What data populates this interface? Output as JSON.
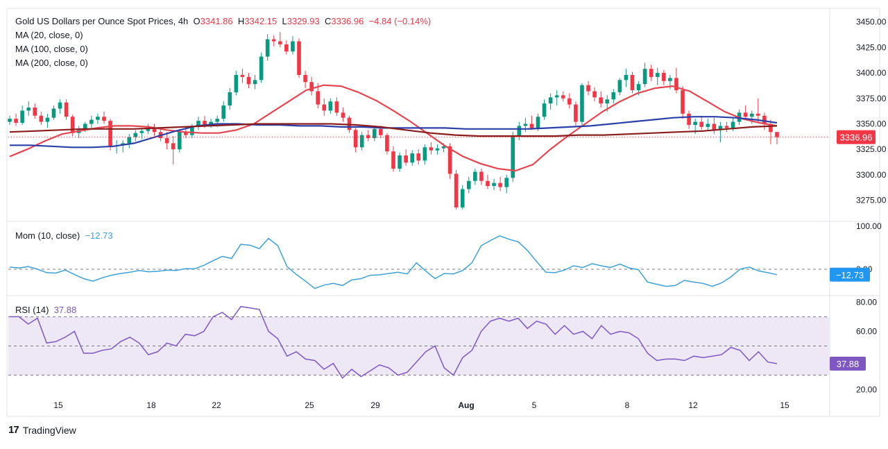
{
  "legend": {
    "title": "Gold US Dollars per Ounce Spot Prices, 4h",
    "o_label": "O",
    "o_value": "3341.86",
    "h_label": "H",
    "h_value": "3342.15",
    "l_label": "L",
    "l_value": "3329.93",
    "c_label": "C",
    "c_value": "3336.96",
    "change": "−4.84 (−0.14%)",
    "ma1": "MA (20, close, 0)",
    "ma2": "MA (100, close, 0)",
    "ma3": "MA (200, close, 0)",
    "mom_label": "Mom (10, close)",
    "mom_value": "−12.73",
    "rsi_label": "RSI (14)",
    "rsi_value": "37.88"
  },
  "brand": {
    "logo": "17",
    "name": "TradingView"
  },
  "colors": {
    "up": "#089981",
    "down": "#f23645",
    "ma20": "#e5444f",
    "ma100": "#2a3fa8",
    "ma200": "#8b1c1c",
    "mom": "#3ba1d8",
    "rsi": "#7e57c2",
    "rsi_band": "#ede7f6"
  },
  "chart_data": [
    {
      "type": "candlestick",
      "title": "Gold US Dollars per Ounce Spot Prices, 4h",
      "ylim": [
        3255,
        3462
      ],
      "y_ticks": [
        "3450.00",
        "3425.00",
        "3400.00",
        "3375.00",
        "3350.00",
        "3325.00",
        "3300.00",
        "3275.00"
      ],
      "x_ticks": [
        "15",
        "18",
        "22",
        "25",
        "29",
        "Aug",
        "5",
        "8",
        "12",
        "15"
      ],
      "last_price_label": "3336.96",
      "ohlc": [
        [
          3352,
          3358,
          3349,
          3355
        ],
        [
          3355,
          3360,
          3348,
          3351
        ],
        [
          3351,
          3368,
          3349,
          3363
        ],
        [
          3363,
          3372,
          3358,
          3366
        ],
        [
          3366,
          3370,
          3355,
          3358
        ],
        [
          3358,
          3362,
          3349,
          3352
        ],
        [
          3352,
          3360,
          3346,
          3356
        ],
        [
          3356,
          3368,
          3354,
          3365
        ],
        [
          3365,
          3374,
          3360,
          3371
        ],
        [
          3371,
          3374,
          3354,
          3357
        ],
        [
          3357,
          3359,
          3338,
          3341
        ],
        [
          3341,
          3348,
          3336,
          3344
        ],
        [
          3344,
          3352,
          3342,
          3350
        ],
        [
          3350,
          3358,
          3346,
          3354
        ],
        [
          3354,
          3360,
          3350,
          3357
        ],
        [
          3357,
          3362,
          3350,
          3353
        ],
        [
          3353,
          3355,
          3324,
          3328
        ],
        [
          3328,
          3334,
          3321,
          3329
        ],
        [
          3329,
          3334,
          3322,
          3331
        ],
        [
          3331,
          3340,
          3326,
          3337
        ],
        [
          3337,
          3344,
          3333,
          3341
        ],
        [
          3341,
          3346,
          3335,
          3343
        ],
        [
          3343,
          3350,
          3340,
          3346
        ],
        [
          3346,
          3350,
          3338,
          3342
        ],
        [
          3342,
          3346,
          3333,
          3336
        ],
        [
          3336,
          3342,
          3325,
          3331
        ],
        [
          3331,
          3338,
          3310,
          3325
        ],
        [
          3325,
          3345,
          3322,
          3342
        ],
        [
          3342,
          3347,
          3336,
          3339
        ],
        [
          3339,
          3350,
          3336,
          3347
        ],
        [
          3347,
          3357,
          3344,
          3353
        ],
        [
          3353,
          3358,
          3346,
          3349
        ],
        [
          3349,
          3355,
          3346,
          3352
        ],
        [
          3352,
          3358,
          3347,
          3355
        ],
        [
          3355,
          3372,
          3352,
          3368
        ],
        [
          3368,
          3385,
          3364,
          3381
        ],
        [
          3381,
          3402,
          3378,
          3398
        ],
        [
          3398,
          3404,
          3390,
          3396
        ],
        [
          3396,
          3400,
          3385,
          3389
        ],
        [
          3389,
          3398,
          3384,
          3393
        ],
        [
          3393,
          3420,
          3390,
          3416
        ],
        [
          3416,
          3438,
          3412,
          3433
        ],
        [
          3433,
          3437,
          3426,
          3431
        ],
        [
          3431,
          3440,
          3425,
          3428
        ],
        [
          3428,
          3432,
          3418,
          3421
        ],
        [
          3421,
          3436,
          3418,
          3431
        ],
        [
          3431,
          3434,
          3395,
          3398
        ],
        [
          3398,
          3402,
          3385,
          3391
        ],
        [
          3391,
          3396,
          3378,
          3382
        ],
        [
          3382,
          3390,
          3365,
          3369
        ],
        [
          3369,
          3375,
          3358,
          3363
        ],
        [
          3363,
          3375,
          3360,
          3372
        ],
        [
          3372,
          3376,
          3358,
          3361
        ],
        [
          3361,
          3366,
          3352,
          3356
        ],
        [
          3356,
          3358,
          3341,
          3344
        ],
        [
          3344,
          3346,
          3322,
          3327
        ],
        [
          3327,
          3342,
          3324,
          3339
        ],
        [
          3339,
          3344,
          3333,
          3336
        ],
        [
          3336,
          3348,
          3333,
          3345
        ],
        [
          3345,
          3348,
          3336,
          3339
        ],
        [
          3339,
          3341,
          3320,
          3323
        ],
        [
          3323,
          3328,
          3303,
          3306
        ],
        [
          3306,
          3322,
          3303,
          3319
        ],
        [
          3319,
          3325,
          3309,
          3312
        ],
        [
          3312,
          3324,
          3309,
          3321
        ],
        [
          3321,
          3325,
          3310,
          3314
        ],
        [
          3314,
          3330,
          3310,
          3327
        ],
        [
          3327,
          3332,
          3320,
          3324
        ],
        [
          3324,
          3330,
          3320,
          3326
        ],
        [
          3326,
          3331,
          3322,
          3328
        ],
        [
          3328,
          3331,
          3296,
          3301
        ],
        [
          3301,
          3305,
          3266,
          3268
        ],
        [
          3268,
          3290,
          3266,
          3286
        ],
        [
          3286,
          3298,
          3282,
          3294
        ],
        [
          3294,
          3306,
          3290,
          3303
        ],
        [
          3303,
          3306,
          3290,
          3294
        ],
        [
          3294,
          3300,
          3286,
          3289
        ],
        [
          3289,
          3296,
          3285,
          3292
        ],
        [
          3292,
          3298,
          3284,
          3288
        ],
        [
          3288,
          3300,
          3282,
          3297
        ],
        [
          3297,
          3342,
          3293,
          3338
        ],
        [
          3338,
          3352,
          3334,
          3348
        ],
        [
          3348,
          3356,
          3342,
          3350
        ],
        [
          3350,
          3358,
          3344,
          3346
        ],
        [
          3346,
          3360,
          3343,
          3357
        ],
        [
          3357,
          3374,
          3354,
          3370
        ],
        [
          3370,
          3380,
          3364,
          3376
        ],
        [
          3376,
          3383,
          3368,
          3378
        ],
        [
          3378,
          3382,
          3372,
          3375
        ],
        [
          3375,
          3380,
          3365,
          3369
        ],
        [
          3369,
          3372,
          3348,
          3352
        ],
        [
          3352,
          3390,
          3349,
          3388
        ],
        [
          3388,
          3392,
          3378,
          3382
        ],
        [
          3382,
          3386,
          3372,
          3376
        ],
        [
          3376,
          3382,
          3366,
          3370
        ],
        [
          3370,
          3378,
          3362,
          3374
        ],
        [
          3374,
          3384,
          3370,
          3381
        ],
        [
          3381,
          3395,
          3378,
          3393
        ],
        [
          3393,
          3404,
          3386,
          3398
        ],
        [
          3398,
          3401,
          3380,
          3383
        ],
        [
          3383,
          3392,
          3378,
          3389
        ],
        [
          3389,
          3410,
          3386,
          3404
        ],
        [
          3404,
          3408,
          3392,
          3396
        ],
        [
          3396,
          3405,
          3388,
          3400
        ],
        [
          3400,
          3403,
          3388,
          3392
        ],
        [
          3392,
          3398,
          3384,
          3395
        ],
        [
          3395,
          3405,
          3380,
          3383
        ],
        [
          3383,
          3387,
          3355,
          3360
        ],
        [
          3360,
          3363,
          3345,
          3349
        ],
        [
          3349,
          3355,
          3340,
          3352
        ],
        [
          3352,
          3358,
          3344,
          3347
        ],
        [
          3347,
          3355,
          3343,
          3350
        ],
        [
          3350,
          3356,
          3340,
          3344
        ],
        [
          3344,
          3352,
          3332,
          3348
        ],
        [
          3348,
          3352,
          3342,
          3346
        ],
        [
          3346,
          3356,
          3343,
          3352
        ],
        [
          3352,
          3364,
          3349,
          3361
        ],
        [
          3361,
          3368,
          3354,
          3357
        ],
        [
          3357,
          3363,
          3350,
          3360
        ],
        [
          3360,
          3375,
          3352,
          3358
        ],
        [
          3358,
          3361,
          3344,
          3350
        ],
        [
          3350,
          3354,
          3330,
          3342
        ],
        [
          3342,
          3342,
          3330,
          3337
        ]
      ],
      "series": [
        {
          "name": "MA (20, close, 0)",
          "values": [
            3318,
            3325,
            3333,
            3340,
            3343,
            3346,
            3348,
            3348,
            3347,
            3344,
            3342,
            3341,
            3341,
            3344,
            3350,
            3361,
            3372,
            3383,
            3388,
            3387,
            3381,
            3373,
            3363,
            3352,
            3340,
            3328,
            3318,
            3311,
            3306,
            3304,
            3310,
            3325,
            3338,
            3350,
            3362,
            3372,
            3380,
            3385,
            3387,
            3382,
            3372,
            3362,
            3355,
            3351,
            3348
          ]
        },
        {
          "name": "MA (100, close, 0)",
          "values": [
            3329,
            3329,
            3328,
            3327,
            3327,
            3328,
            3331,
            3337,
            3343,
            3348,
            3350,
            3350,
            3349,
            3349,
            3348,
            3348,
            3347,
            3347,
            3346,
            3346,
            3346,
            3346,
            3345,
            3345,
            3345,
            3345,
            3346,
            3347,
            3348,
            3350,
            3352,
            3354,
            3356,
            3357,
            3357,
            3356,
            3354,
            3351
          ]
        },
        {
          "name": "MA (200, close, 0)",
          "values": [
            3342,
            3343,
            3344,
            3345,
            3345,
            3345,
            3346,
            3347,
            3348,
            3349,
            3350,
            3350,
            3350,
            3350,
            3349,
            3347,
            3344,
            3341,
            3339,
            3338,
            3338,
            3338,
            3338,
            3339,
            3339,
            3340,
            3341,
            3342,
            3343,
            3345,
            3347,
            3348
          ]
        }
      ]
    },
    {
      "type": "line",
      "title": "Mom (10, close)",
      "y_ticks": [
        "100.00",
        "0.00"
      ],
      "last_value_label": "−12.73",
      "series": [
        {
          "name": "Mom (10, close)",
          "values": [
            5,
            3,
            6,
            0,
            -8,
            -9,
            -2,
            -12,
            -22,
            -28,
            -20,
            -14,
            -10,
            -7,
            -3,
            -6,
            -5,
            -2,
            -3,
            1,
            1,
            9,
            20,
            30,
            25,
            58,
            56,
            48,
            72,
            55,
            6,
            -12,
            -28,
            -45,
            -37,
            -33,
            -38,
            -25,
            -22,
            -14,
            -13,
            -10,
            -7,
            -11,
            15,
            -4,
            -22,
            -10,
            -11,
            -3,
            15,
            55,
            67,
            78,
            70,
            64,
            44,
            18,
            -7,
            -8,
            -2,
            8,
            4,
            13,
            8,
            4,
            12,
            3,
            -1,
            -30,
            -35,
            -40,
            -38,
            -26,
            -30,
            -33,
            -40,
            -32,
            -18,
            0,
            5,
            -4,
            -8,
            -12.73
          ]
        }
      ]
    },
    {
      "type": "line",
      "title": "RSI (14)",
      "ylim": [
        20,
        80
      ],
      "y_ticks": [
        "80.00",
        "60.00",
        "20.00"
      ],
      "bands": [
        30,
        50,
        70
      ],
      "last_value_label": "37.88",
      "series": [
        {
          "name": "RSI (14)",
          "values": [
            70,
            70,
            65,
            69,
            52,
            53,
            56,
            60,
            45,
            45,
            47,
            48,
            53,
            56,
            52,
            44,
            46,
            52,
            50,
            58,
            57,
            60,
            70,
            73,
            68,
            77,
            76,
            75,
            60,
            55,
            43,
            46,
            41,
            40,
            34,
            38,
            28,
            34,
            29,
            33,
            37,
            35,
            30,
            32,
            39,
            46,
            50,
            35,
            30,
            42,
            47,
            60,
            67,
            69,
            67,
            69,
            62,
            67,
            65,
            58,
            64,
            58,
            60,
            55,
            64,
            58,
            60,
            59,
            55,
            45,
            40,
            41,
            41,
            40,
            43,
            42,
            43,
            44,
            49,
            47,
            40,
            46,
            39,
            37.88
          ]
        }
      ]
    }
  ]
}
